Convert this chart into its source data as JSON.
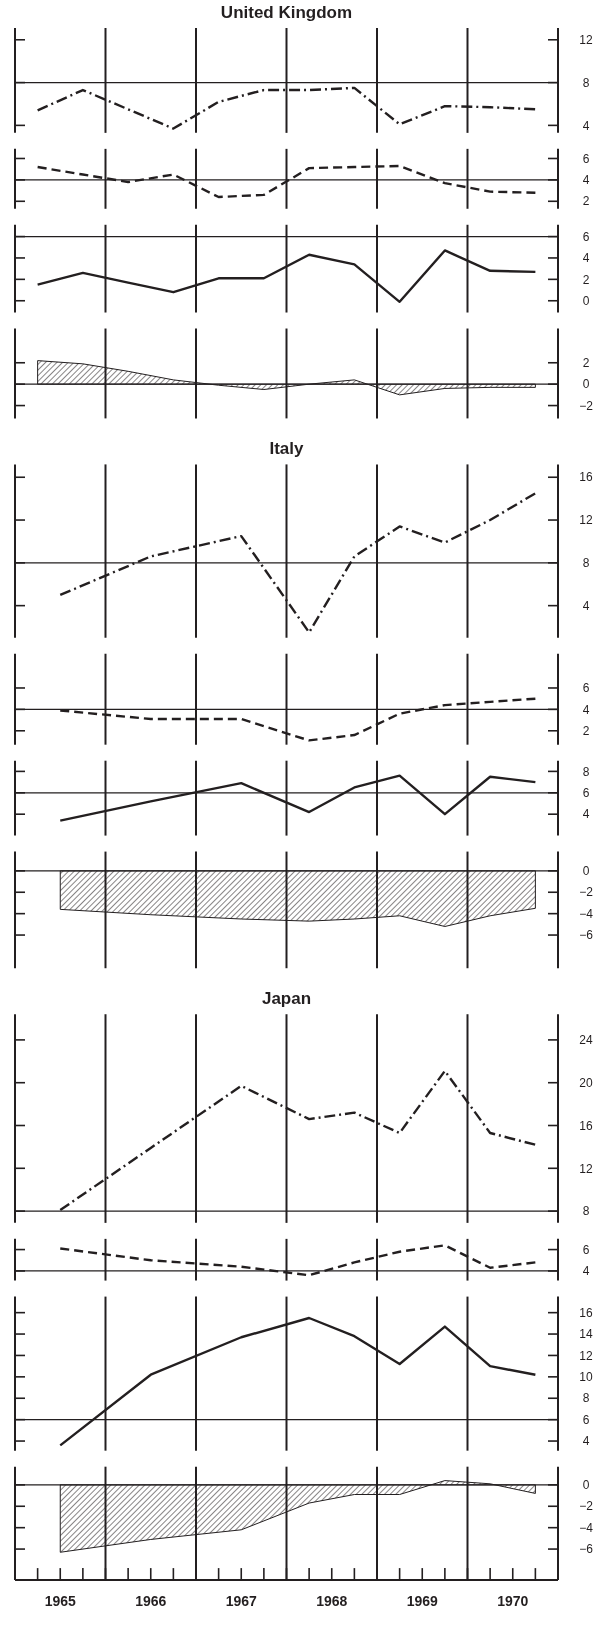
{
  "chart_data": [
    {
      "type": "line",
      "title": "United Kingdom",
      "x": [
        1965.25,
        1965.75,
        1966.25,
        1966.75,
        1967.25,
        1967.75,
        1968.25,
        1968.75,
        1969.25,
        1969.75,
        1970.25,
        1970.75
      ],
      "xlim": [
        1965,
        1971
      ],
      "ylim": [
        3.3,
        13.1
      ],
      "yticks": [
        4,
        8,
        12
      ],
      "tick_labels": "y",
      "ref_lines": [
        {
          "axis": "x",
          "value": 1966
        },
        {
          "axis": "x",
          "value": 1967
        },
        {
          "axis": "x",
          "value": 1968
        },
        {
          "axis": "x",
          "value": 1969
        },
        {
          "axis": "x",
          "value": 1970
        },
        {
          "axis": "y",
          "value": 8
        }
      ],
      "series": [
        {
          "color": "#231f20",
          "line_style": "dashdot",
          "values": [
            5.4,
            7.3,
            5.5,
            3.7,
            6.2,
            7.3,
            7.3,
            7.5,
            4.1,
            5.8,
            5.7,
            5.5
          ]
        }
      ]
    },
    {
      "type": "line",
      "x": [
        1965.25,
        1965.75,
        1966.25,
        1966.75,
        1967.25,
        1967.75,
        1968.25,
        1968.75,
        1969.25,
        1969.75,
        1970.25,
        1970.75
      ],
      "xlim": [
        1965,
        1971
      ],
      "ylim": [
        1.3,
        6.9
      ],
      "yticks": [
        2,
        4,
        6
      ],
      "tick_labels": "y",
      "ref_lines": [
        {
          "axis": "x",
          "value": 1966
        },
        {
          "axis": "x",
          "value": 1967
        },
        {
          "axis": "x",
          "value": 1968
        },
        {
          "axis": "x",
          "value": 1969
        },
        {
          "axis": "x",
          "value": 1970
        },
        {
          "axis": "y",
          "value": 4
        }
      ],
      "series": [
        {
          "color": "#231f20",
          "line_style": "dashed",
          "values": [
            5.2,
            4.5,
            3.8,
            4.5,
            2.4,
            2.6,
            5.1,
            5.2,
            5.3,
            3.7,
            2.9,
            2.8
          ]
        }
      ]
    },
    {
      "type": "line",
      "x": [
        1965.25,
        1965.75,
        1966.25,
        1966.75,
        1967.25,
        1967.75,
        1968.25,
        1968.75,
        1969.25,
        1969.75,
        1970.25,
        1970.75
      ],
      "xlim": [
        1965,
        1971
      ],
      "ylim": [
        -1.1,
        7.1
      ],
      "yticks": [
        0,
        2,
        4,
        6
      ],
      "tick_labels": "y",
      "ref_lines": [
        {
          "axis": "x",
          "value": 1966
        },
        {
          "axis": "x",
          "value": 1967
        },
        {
          "axis": "x",
          "value": 1968
        },
        {
          "axis": "x",
          "value": 1969
        },
        {
          "axis": "x",
          "value": 1970
        },
        {
          "axis": "y",
          "value": 6
        }
      ],
      "series": [
        {
          "color": "#231f20",
          "line_style": "solid",
          "values": [
            1.5,
            2.6,
            1.7,
            0.8,
            2.1,
            2.1,
            4.3,
            3.4,
            -0.1,
            4.7,
            2.8,
            2.7
          ]
        }
      ]
    },
    {
      "type": "area",
      "x": [
        1965.25,
        1965.75,
        1966.25,
        1966.75,
        1967.25,
        1967.75,
        1968.25,
        1968.75,
        1969.25,
        1969.75,
        1970.25,
        1970.75
      ],
      "xlim": [
        1965,
        1971
      ],
      "ylim": [
        -3.2,
        5.2
      ],
      "yticks": [
        -2,
        0,
        2
      ],
      "tick_labels": "y",
      "ref_lines": [
        {
          "axis": "x",
          "value": 1966
        },
        {
          "axis": "x",
          "value": 1967
        },
        {
          "axis": "x",
          "value": 1968
        },
        {
          "axis": "x",
          "value": 1969
        },
        {
          "axis": "x",
          "value": 1970
        },
        {
          "axis": "y",
          "value": 0
        }
      ],
      "series": [
        {
          "color": "#231f20",
          "values": [
            2.2,
            1.9,
            1.2,
            0.4,
            -0.1,
            -0.5,
            0,
            0.4,
            -1.0,
            -0.4,
            -0.3,
            -0.3
          ]
        }
      ]
    },
    {
      "type": "line",
      "title": "Italy",
      "x": [
        1965.5,
        1966.5,
        1967.5,
        1968.25,
        1968.75,
        1969.25,
        1969.75,
        1970.25,
        1970.75
      ],
      "xlim": [
        1965,
        1971
      ],
      "ylim": [
        1.0,
        17.2
      ],
      "yticks": [
        4,
        8,
        12,
        16
      ],
      "tick_labels": "y",
      "ref_lines": [
        {
          "axis": "x",
          "value": 1966
        },
        {
          "axis": "x",
          "value": 1967
        },
        {
          "axis": "x",
          "value": 1968
        },
        {
          "axis": "x",
          "value": 1969
        },
        {
          "axis": "x",
          "value": 1970
        },
        {
          "axis": "y",
          "value": 8
        }
      ],
      "series": [
        {
          "color": "#231f20",
          "line_style": "dashdot",
          "values": [
            5.0,
            8.6,
            10.5,
            1.5,
            8.6,
            11.4,
            9.9,
            12.0,
            14.5
          ]
        }
      ]
    },
    {
      "type": "line",
      "x": [
        1965.5,
        1966.5,
        1967.5,
        1968.25,
        1968.75,
        1969.25,
        1969.75,
        1970.25,
        1970.75
      ],
      "xlim": [
        1965,
        1971
      ],
      "ylim": [
        0.7,
        9.2
      ],
      "yticks": [
        2,
        4,
        6
      ],
      "tick_labels": "y",
      "ref_lines": [
        {
          "axis": "x",
          "value": 1966
        },
        {
          "axis": "x",
          "value": 1967
        },
        {
          "axis": "x",
          "value": 1968
        },
        {
          "axis": "x",
          "value": 1969
        },
        {
          "axis": "x",
          "value": 1970
        },
        {
          "axis": "y",
          "value": 4
        }
      ],
      "series": [
        {
          "color": "#231f20",
          "line_style": "dashed",
          "values": [
            3.9,
            3.1,
            3.1,
            1.1,
            1.6,
            3.6,
            4.4,
            4.7,
            5.0
          ]
        }
      ]
    },
    {
      "type": "line",
      "x": [
        1965.5,
        1966.5,
        1967.5,
        1968.25,
        1968.75,
        1969.25,
        1969.75,
        1970.25,
        1970.75
      ],
      "xlim": [
        1965,
        1971
      ],
      "ylim": [
        2.0,
        9.0
      ],
      "yticks": [
        4,
        6,
        8
      ],
      "tick_labels": "y",
      "ref_lines": [
        {
          "axis": "x",
          "value": 1966
        },
        {
          "axis": "x",
          "value": 1967
        },
        {
          "axis": "x",
          "value": 1968
        },
        {
          "axis": "x",
          "value": 1969
        },
        {
          "axis": "x",
          "value": 1970
        },
        {
          "axis": "y",
          "value": 6
        }
      ],
      "series": [
        {
          "color": "#231f20",
          "line_style": "solid",
          "values": [
            3.4,
            5.2,
            6.9,
            4.2,
            6.5,
            7.6,
            4.0,
            7.5,
            7.0
          ]
        }
      ]
    },
    {
      "type": "area",
      "x": [
        1965.5,
        1966.5,
        1967.5,
        1968.25,
        1968.75,
        1969.25,
        1969.75,
        1970.25,
        1970.75
      ],
      "xlim": [
        1965,
        1971
      ],
      "ylim": [
        -9.1,
        1.8
      ],
      "yticks": [
        -6,
        -4,
        -2,
        0
      ],
      "tick_labels": "y",
      "ref_lines": [
        {
          "axis": "x",
          "value": 1966
        },
        {
          "axis": "x",
          "value": 1967
        },
        {
          "axis": "x",
          "value": 1968
        },
        {
          "axis": "x",
          "value": 1969
        },
        {
          "axis": "x",
          "value": 1970
        },
        {
          "axis": "y",
          "value": 0
        }
      ],
      "series": [
        {
          "color": "#231f20",
          "values": [
            -3.6,
            -4.1,
            -4.5,
            -4.7,
            -4.5,
            -4.2,
            -5.2,
            -4.2,
            -3.5
          ]
        }
      ]
    },
    {
      "type": "line",
      "title": "Japan",
      "x": [
        1965.5,
        1966.5,
        1967.5,
        1968.25,
        1968.75,
        1969.25,
        1969.75,
        1970.25,
        1970.75
      ],
      "xlim": [
        1965,
        1971
      ],
      "ylim": [
        6.9,
        26.4
      ],
      "yticks": [
        8,
        12,
        16,
        20,
        24
      ],
      "tick_labels": "y",
      "ref_lines": [
        {
          "axis": "x",
          "value": 1966
        },
        {
          "axis": "x",
          "value": 1967
        },
        {
          "axis": "x",
          "value": 1968
        },
        {
          "axis": "x",
          "value": 1969
        },
        {
          "axis": "x",
          "value": 1970
        },
        {
          "axis": "y",
          "value": 8
        }
      ],
      "series": [
        {
          "color": "#231f20",
          "line_style": "dashdot",
          "values": [
            8.1,
            13.9,
            19.7,
            16.6,
            17.2,
            15.3,
            21.1,
            15.3,
            14.2
          ]
        }
      ]
    },
    {
      "type": "line",
      "x": [
        1965.5,
        1966.5,
        1967.5,
        1968.25,
        1968.75,
        1969.25,
        1969.75,
        1970.25,
        1970.75
      ],
      "xlim": [
        1965,
        1971
      ],
      "ylim": [
        3.1,
        7.0
      ],
      "yticks": [
        4,
        6
      ],
      "tick_labels": "y",
      "ref_lines": [
        {
          "axis": "x",
          "value": 1966
        },
        {
          "axis": "x",
          "value": 1967
        },
        {
          "axis": "x",
          "value": 1968
        },
        {
          "axis": "x",
          "value": 1969
        },
        {
          "axis": "x",
          "value": 1970
        },
        {
          "axis": "y",
          "value": 4
        }
      ],
      "series": [
        {
          "color": "#231f20",
          "line_style": "dashed",
          "values": [
            6.1,
            5.0,
            4.4,
            3.6,
            4.8,
            5.8,
            6.4,
            4.3,
            4.8
          ]
        }
      ]
    },
    {
      "type": "line",
      "x": [
        1965.5,
        1966.5,
        1967.5,
        1968.25,
        1968.75,
        1969.25,
        1969.75,
        1970.25,
        1970.75
      ],
      "xlim": [
        1965,
        1971
      ],
      "ylim": [
        3.1,
        17.5
      ],
      "yticks": [
        4,
        6,
        8,
        10,
        12,
        14,
        16
      ],
      "tick_labels": "y",
      "ref_lines": [
        {
          "axis": "x",
          "value": 1966
        },
        {
          "axis": "x",
          "value": 1967
        },
        {
          "axis": "x",
          "value": 1968
        },
        {
          "axis": "x",
          "value": 1969
        },
        {
          "axis": "x",
          "value": 1970
        },
        {
          "axis": "y",
          "value": 6
        }
      ],
      "series": [
        {
          "color": "#231f20",
          "line_style": "solid",
          "values": [
            3.6,
            10.2,
            13.7,
            15.5,
            13.8,
            11.2,
            14.7,
            11.0,
            10.2
          ]
        }
      ]
    },
    {
      "type": "area",
      "x": [
        1965.5,
        1966.5,
        1967.5,
        1968.25,
        1968.75,
        1969.25,
        1969.75,
        1970.25,
        1970.75
      ],
      "xlim": [
        1965,
        1971
      ],
      "ylim": [
        -8.9,
        1.7
      ],
      "yticks": [
        -6,
        -4,
        -2,
        0
      ],
      "ref_lines": [
        {
          "axis": "x",
          "value": 1966
        },
        {
          "axis": "x",
          "value": 1967
        },
        {
          "axis": "x",
          "value": 1968
        },
        {
          "axis": "x",
          "value": 1969
        },
        {
          "axis": "x",
          "value": 1970
        },
        {
          "axis": "y",
          "value": 0
        }
      ],
      "xticks": [
        {
          "value": 1965.25,
          "label": null
        },
        {
          "value": 1965.5,
          "label": "1965"
        },
        {
          "value": 1965.75,
          "label": null
        },
        {
          "value": 1966,
          "label": null
        },
        {
          "value": 1966.25,
          "label": null
        },
        {
          "value": 1966.5,
          "label": "1966"
        },
        {
          "value": 1966.75,
          "label": null
        },
        {
          "value": 1967,
          "label": null
        },
        {
          "value": 1967.25,
          "label": null
        },
        {
          "value": 1967.5,
          "label": "1967"
        },
        {
          "value": 1967.75,
          "label": null
        },
        {
          "value": 1968,
          "label": null
        },
        {
          "value": 1968.25,
          "label": null
        },
        {
          "value": 1968.5,
          "label": "1968"
        },
        {
          "value": 1968.75,
          "label": null
        },
        {
          "value": 1969,
          "label": null
        },
        {
          "value": 1969.25,
          "label": null
        },
        {
          "value": 1969.5,
          "label": "1969"
        },
        {
          "value": 1969.75,
          "label": null
        },
        {
          "value": 1970,
          "label": null
        },
        {
          "value": 1970.25,
          "label": null
        },
        {
          "value": 1970.5,
          "label": "1970"
        },
        {
          "value": 1970.75,
          "label": null
        }
      ],
      "series": [
        {
          "color": "#231f20",
          "values": [
            -6.3,
            -5.1,
            -4.2,
            -1.7,
            -0.9,
            -0.9,
            0.4,
            0.1,
            -0.8
          ]
        }
      ]
    }
  ]
}
